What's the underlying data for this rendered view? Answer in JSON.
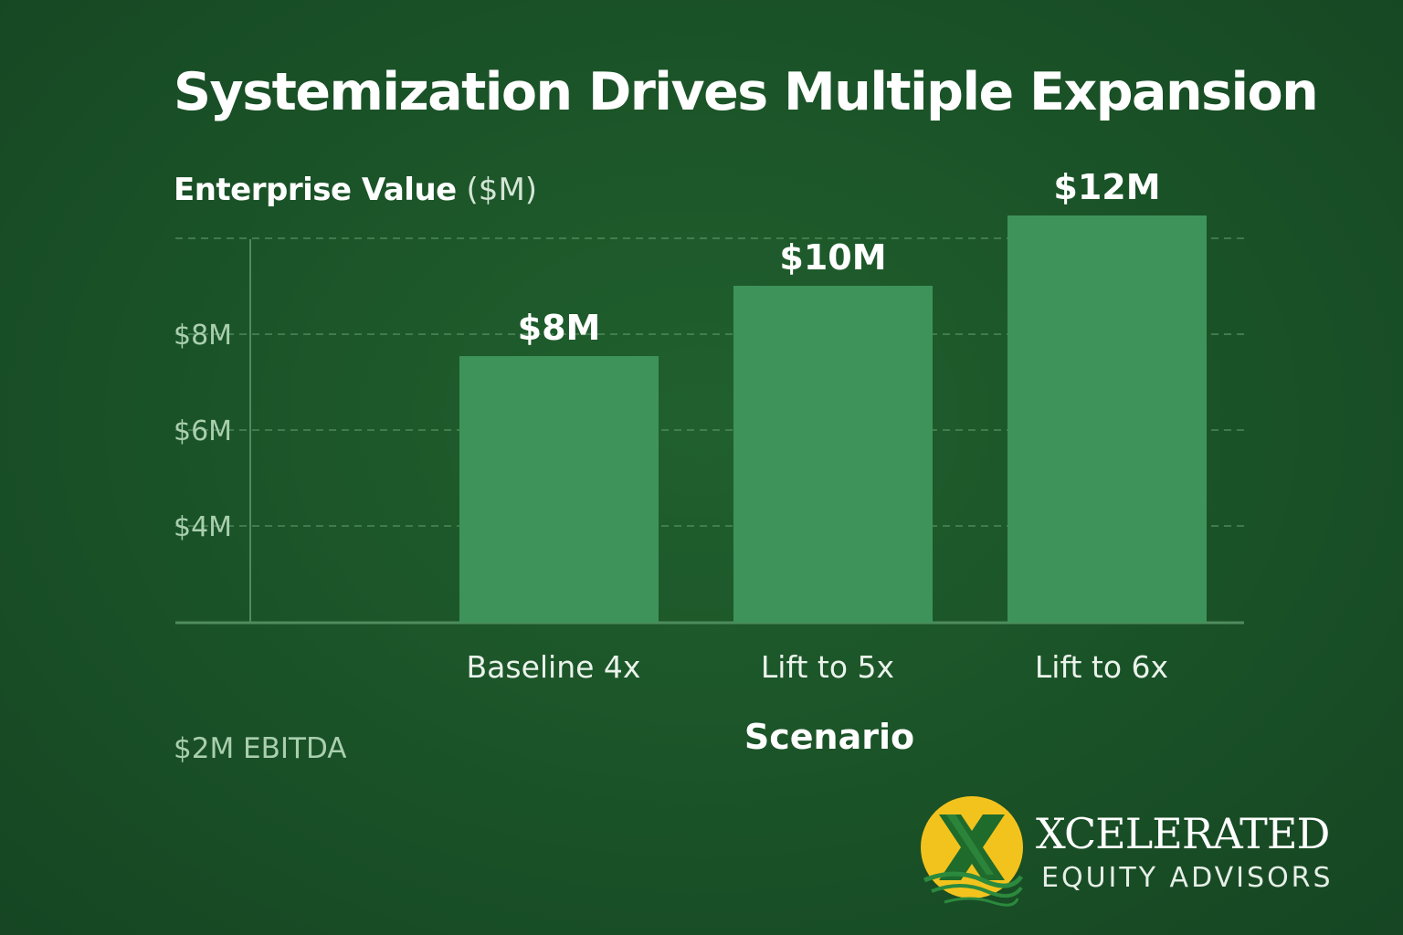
{
  "title": "Systemization Drives Multiple Expansion",
  "footnote": "$2M EBITDA",
  "chart_data": {
    "type": "bar",
    "ylabel_bold": "Enterprise Value",
    "ylabel_unit": "($M)",
    "xlabel": "Scenario",
    "categories": [
      "Baseline 4x",
      "Lift to 5x",
      "Lift to 6x"
    ],
    "values": [
      8,
      10,
      12
    ],
    "data_labels": [
      "$8M",
      "$10M",
      "$12M"
    ],
    "y_ticks": [
      4,
      6,
      8
    ],
    "y_tick_labels": [
      "$4M",
      "$6M",
      "$8M"
    ],
    "ylim": [
      0,
      12
    ],
    "grid": true,
    "bar_color": "#3e935a",
    "grid_color": "#5f9a6b",
    "axis_color": "#4f8c5d"
  },
  "logo": {
    "name": "XCELERATED",
    "tagline": "EQUITY ADVISORS",
    "mark_color": "#f3c31d",
    "x_color": "#1e6b2c"
  }
}
